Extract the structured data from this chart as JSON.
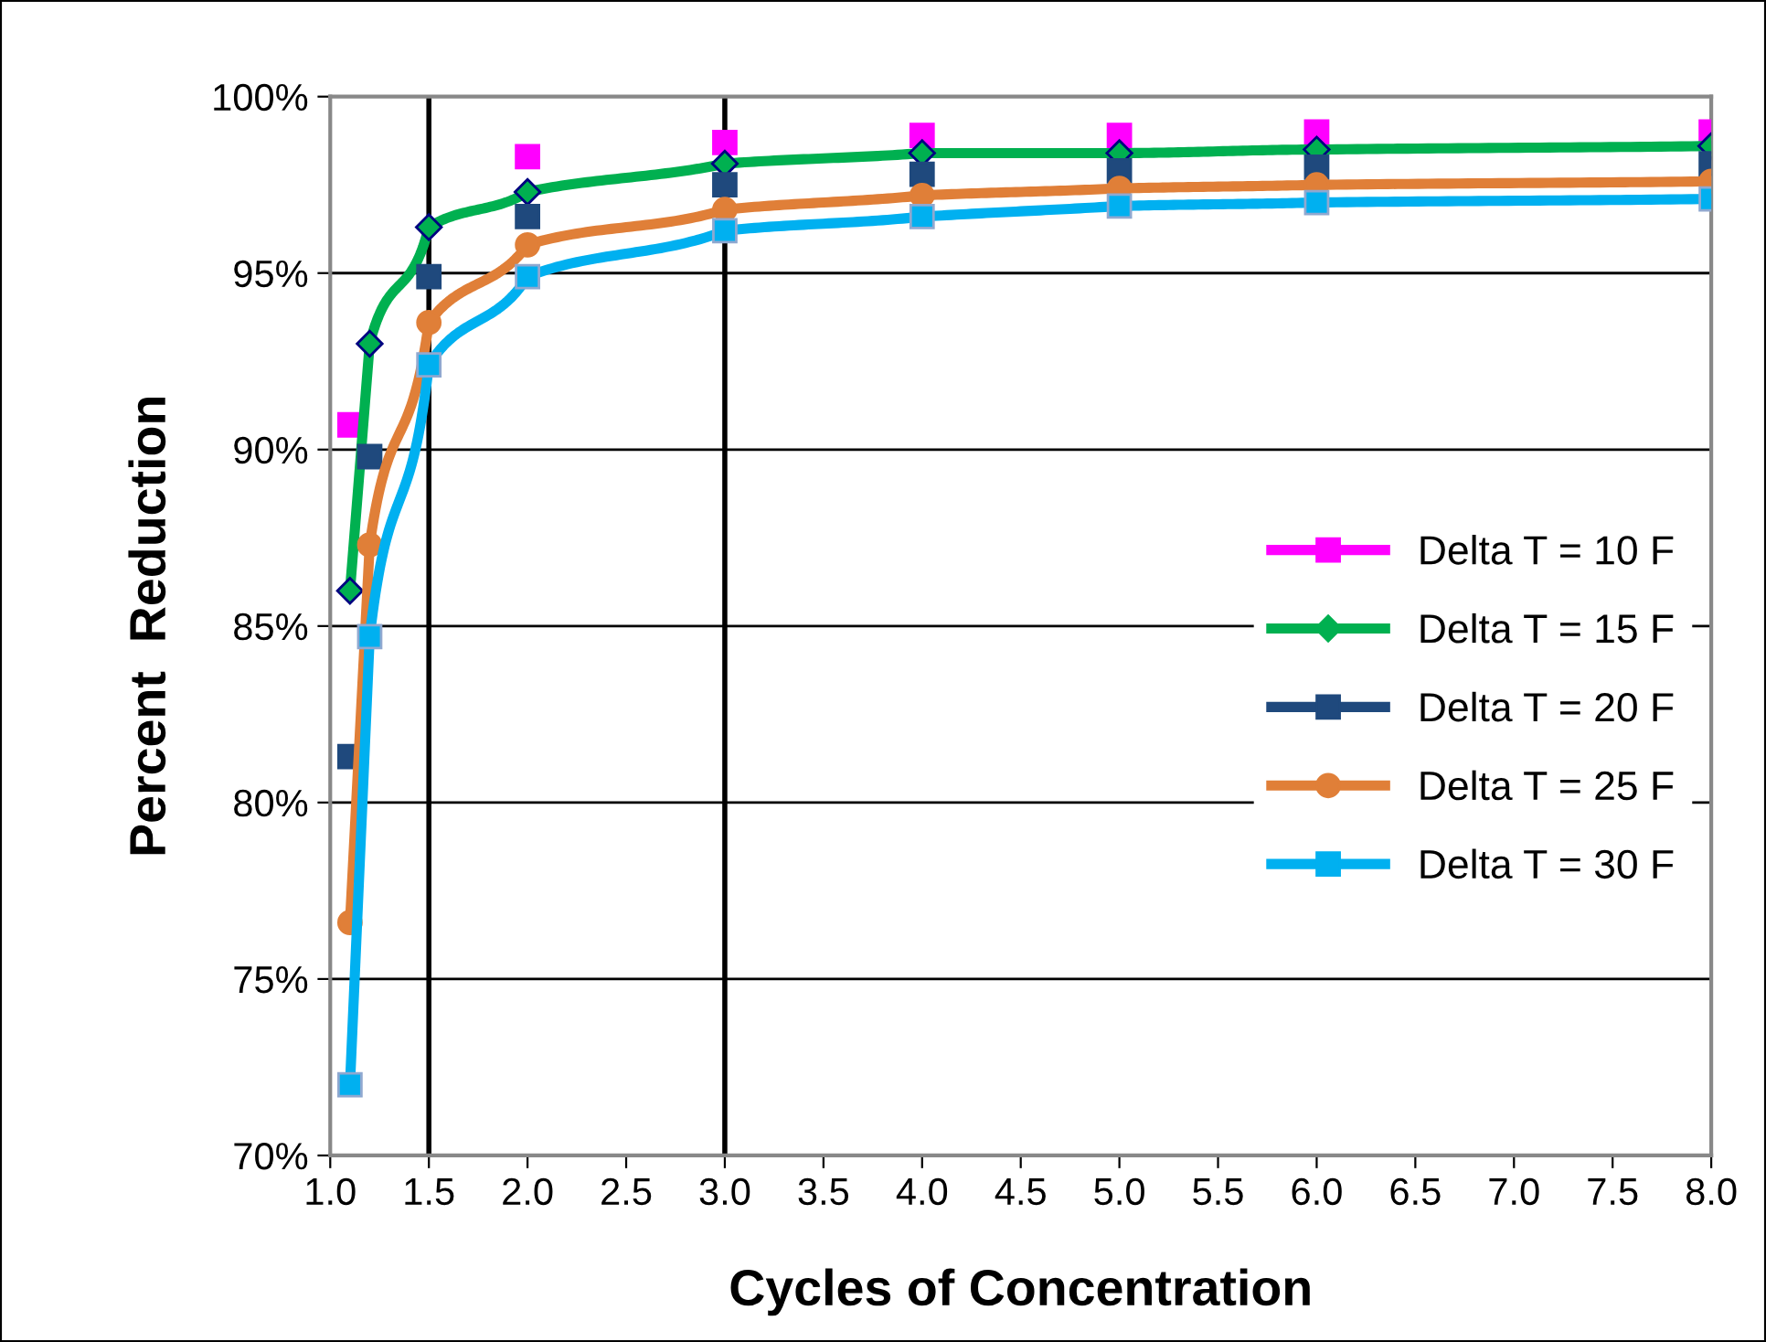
{
  "chart_data": {
    "type": "line",
    "xlabel": "Cycles of Concentration",
    "ylabel": "Percent  Reduction",
    "xlim": [
      1.0,
      8.0
    ],
    "xticks": [
      {
        "value": 1.0,
        "label": "1.0"
      },
      {
        "value": 1.5,
        "label": "1.5"
      },
      {
        "value": 2.0,
        "label": "2.0"
      },
      {
        "value": 2.5,
        "label": "2.5"
      },
      {
        "value": 3.0,
        "label": "3.0"
      },
      {
        "value": 3.5,
        "label": "3.5"
      },
      {
        "value": 4.0,
        "label": "4.0"
      },
      {
        "value": 4.5,
        "label": "4.5"
      },
      {
        "value": 5.0,
        "label": "5.0"
      },
      {
        "value": 5.5,
        "label": "5.5"
      },
      {
        "value": 6.0,
        "label": "6.0"
      },
      {
        "value": 6.5,
        "label": "6.5"
      },
      {
        "value": 7.0,
        "label": "7.0"
      },
      {
        "value": 7.5,
        "label": "7.5"
      },
      {
        "value": 8.0,
        "label": "8.0"
      }
    ],
    "ylim": [
      70,
      100
    ],
    "yticks": [
      {
        "value": 70,
        "label": "70%"
      },
      {
        "value": 75,
        "label": "75%"
      },
      {
        "value": 80,
        "label": "80%"
      },
      {
        "value": 85,
        "label": "85%"
      },
      {
        "value": 90,
        "label": "90%"
      },
      {
        "value": 95,
        "label": "95%"
      },
      {
        "value": 100,
        "label": "100%"
      }
    ],
    "grid": "y",
    "legend": "right",
    "ref_lines": [
      {
        "axis": "x",
        "value": 1.5,
        "label": null,
        "color": "#000000"
      },
      {
        "axis": "x",
        "value": 3.0,
        "label": null,
        "color": "#000000"
      }
    ],
    "series": [
      {
        "name": "Delta T = 10 F",
        "type": "scatter",
        "color": "#ff00ff",
        "marker": "square",
        "x": [
          1.1,
          2.0,
          3.0,
          4.0,
          5.0,
          6.0,
          8.0
        ],
        "values": [
          90.7,
          98.3,
          98.7,
          98.9,
          98.9,
          99.0,
          99.0
        ]
      },
      {
        "name": "Delta T = 15 F",
        "color": "#00b050",
        "marker": "diamond",
        "x": [
          1.1,
          1.2,
          1.5,
          2.0,
          3.0,
          4.0,
          5.0,
          6.0,
          8.0
        ],
        "values": [
          86.0,
          93.0,
          96.3,
          97.3,
          98.1,
          98.4,
          98.4,
          98.5,
          98.6
        ]
      },
      {
        "name": "Delta T = 20 F",
        "type": "scatter",
        "color": "#1f497d",
        "marker": "square",
        "x": [
          1.1,
          1.2,
          1.5,
          2.0,
          3.0,
          4.0,
          5.0,
          6.0,
          8.0
        ],
        "values": [
          81.3,
          89.8,
          94.9,
          96.6,
          97.5,
          97.8,
          97.9,
          98.0,
          98.1
        ]
      },
      {
        "name": "Delta T = 25 F",
        "color": "#e07f38",
        "marker": "circle",
        "x": [
          1.1,
          1.2,
          1.5,
          2.0,
          3.0,
          4.0,
          5.0,
          6.0,
          8.0
        ],
        "values": [
          76.6,
          87.3,
          93.6,
          95.8,
          96.8,
          97.2,
          97.4,
          97.5,
          97.6
        ]
      },
      {
        "name": "Delta T = 30 F",
        "color": "#00b0f0",
        "marker": "square",
        "x": [
          1.1,
          1.2,
          1.5,
          2.0,
          3.0,
          4.0,
          5.0,
          6.0,
          8.0
        ],
        "values": [
          72.0,
          84.7,
          92.4,
          94.9,
          96.2,
          96.6,
          96.9,
          97.0,
          97.1
        ]
      }
    ]
  }
}
